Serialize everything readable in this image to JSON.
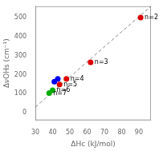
{
  "chart_data": {
    "type": "scatter",
    "series": [
      {
        "type": "scatter",
        "x": [
          91,
          62,
          48,
          44,
          40,
          38,
          41,
          43
        ],
        "values": [
          500,
          265,
          178,
          148,
          118,
          103,
          163,
          178
        ],
        "colors": [
          "#dd0000",
          "#dd0000",
          "#dd0000",
          "#dd0000",
          "#00aa00",
          "#00aa00",
          "#0000ee",
          "#0000ee"
        ]
      },
      {
        "type": "line",
        "x": [
          30,
          97
        ],
        "values": [
          30,
          560
        ],
        "color": "#888888",
        "line_style": "dashed"
      }
    ],
    "annotations": [
      {
        "x": 91,
        "y": 500,
        "text": "n=2"
      },
      {
        "x": 62,
        "y": 265,
        "text": "n=3"
      },
      {
        "x": 48,
        "y": 178,
        "text": "n=4"
      },
      {
        "x": 44,
        "y": 148,
        "text": "n=5"
      },
      {
        "x": 40,
        "y": 118,
        "text": "n=6"
      },
      {
        "x": 38,
        "y": 103,
        "text": "n=7"
      }
    ],
    "xlabel": "ΔHc (kJ/mol)",
    "ylabel": "ΔνOHs (cm⁻¹)",
    "xlim": [
      30,
      97
    ],
    "ylim": [
      -40,
      560
    ],
    "xticks": [
      30,
      40,
      50,
      60,
      70,
      80,
      90
    ],
    "yticks": [
      0,
      100,
      200,
      300,
      400,
      500
    ],
    "grid": false
  }
}
